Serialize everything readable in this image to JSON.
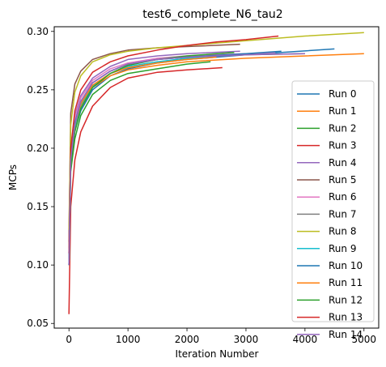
{
  "chart_data": {
    "type": "line",
    "title": "test6_complete_N6_tau2",
    "xlabel": "Iteration Number",
    "ylabel": "MCPs",
    "xlim": [
      -250,
      5250
    ],
    "ylim": [
      0.046,
      0.304
    ],
    "xticks": [
      0,
      1000,
      2000,
      3000,
      4000,
      5000
    ],
    "yticks": [
      0.05,
      0.1,
      0.15,
      0.2,
      0.25,
      0.3
    ],
    "xtick_labels": [
      "0",
      "1000",
      "2000",
      "3000",
      "4000",
      "5000"
    ],
    "ytick_labels": [
      "0.05",
      "0.10",
      "0.15",
      "0.20",
      "0.25",
      "0.30"
    ],
    "grid": false,
    "legend_position": "right",
    "series": [
      {
        "name": "Run 0",
        "color": "#1f77b4",
        "x": [
          0,
          30,
          100,
          200,
          400,
          700,
          1000,
          1500,
          2000,
          3000,
          4500
        ],
        "y": [
          0.12,
          0.19,
          0.215,
          0.232,
          0.25,
          0.262,
          0.268,
          0.273,
          0.276,
          0.28,
          0.285
        ]
      },
      {
        "name": "Run 1",
        "color": "#ff7f0e",
        "x": [
          0,
          30,
          100,
          200,
          400,
          700,
          1000,
          1500,
          2000,
          3000,
          5000
        ],
        "y": [
          0.115,
          0.185,
          0.218,
          0.236,
          0.252,
          0.262,
          0.267,
          0.271,
          0.274,
          0.277,
          0.281
        ]
      },
      {
        "name": "Run 2",
        "color": "#2ca02c",
        "x": [
          0,
          30,
          100,
          200,
          400,
          700,
          1000,
          1500,
          2000,
          2400
        ],
        "y": [
          0.1,
          0.18,
          0.208,
          0.228,
          0.246,
          0.258,
          0.264,
          0.268,
          0.272,
          0.274
        ]
      },
      {
        "name": "Run 3",
        "color": "#d62728",
        "x": [
          0,
          30,
          100,
          200,
          400,
          700,
          1000,
          1500,
          2000,
          2600
        ],
        "y": [
          0.058,
          0.15,
          0.19,
          0.214,
          0.236,
          0.252,
          0.26,
          0.265,
          0.267,
          0.269
        ]
      },
      {
        "name": "Run 4",
        "color": "#9467bd",
        "x": [
          0,
          30,
          100,
          200,
          400,
          700,
          1000,
          1500,
          2000,
          2900
        ],
        "y": [
          0.1,
          0.2,
          0.228,
          0.245,
          0.26,
          0.27,
          0.276,
          0.279,
          0.281,
          0.283
        ]
      },
      {
        "name": "Run 5",
        "color": "#8c564b",
        "x": [
          0,
          30,
          100,
          200,
          400,
          700,
          1000,
          1500,
          2000,
          2900
        ],
        "y": [
          0.12,
          0.23,
          0.255,
          0.266,
          0.276,
          0.281,
          0.284,
          0.286,
          0.287,
          0.289
        ]
      },
      {
        "name": "Run 6",
        "color": "#e377c2",
        "x": [
          0,
          30,
          100,
          200,
          400,
          700,
          1000,
          1500,
          2000,
          3000,
          3500
        ],
        "y": [
          0.11,
          0.2,
          0.226,
          0.243,
          0.258,
          0.268,
          0.273,
          0.277,
          0.279,
          0.281,
          0.282
        ]
      },
      {
        "name": "Run 7",
        "color": "#7f7f7f",
        "x": [
          0,
          30,
          100,
          200,
          400,
          700,
          1000,
          1500,
          2000,
          3000,
          4000
        ],
        "y": [
          0.1,
          0.19,
          0.22,
          0.24,
          0.256,
          0.266,
          0.272,
          0.276,
          0.278,
          0.28,
          0.281
        ]
      },
      {
        "name": "Run 8",
        "color": "#bcbd22",
        "x": [
          0,
          30,
          100,
          200,
          400,
          700,
          1000,
          1500,
          2000,
          3000,
          4000,
          5000
        ],
        "y": [
          0.13,
          0.22,
          0.248,
          0.262,
          0.274,
          0.28,
          0.283,
          0.286,
          0.288,
          0.292,
          0.296,
          0.299
        ]
      },
      {
        "name": "Run 9",
        "color": "#17becf",
        "x": [
          0,
          30,
          100,
          200,
          400,
          700,
          1000,
          1500,
          2000,
          2500
        ],
        "y": [
          0.1,
          0.19,
          0.218,
          0.237,
          0.253,
          0.264,
          0.27,
          0.274,
          0.277,
          0.279
        ]
      },
      {
        "name": "Run 10",
        "color": "#1f77b4",
        "x": [
          0,
          30,
          100,
          200,
          400,
          700,
          1000,
          1500,
          2000,
          3000,
          3600
        ],
        "y": [
          0.11,
          0.195,
          0.222,
          0.24,
          0.256,
          0.266,
          0.272,
          0.276,
          0.278,
          0.281,
          0.283
        ]
      },
      {
        "name": "Run 11",
        "color": "#ff7f0e",
        "x": [
          0,
          30,
          100,
          200,
          400,
          700,
          1000,
          1500,
          2000,
          2500
        ],
        "y": [
          0.11,
          0.19,
          0.22,
          0.238,
          0.254,
          0.264,
          0.269,
          0.273,
          0.276,
          0.278
        ]
      },
      {
        "name": "Run 12",
        "color": "#2ca02c",
        "x": [
          0,
          30,
          100,
          200,
          400,
          700,
          1000,
          1500,
          2000,
          2800
        ],
        "y": [
          0.1,
          0.185,
          0.214,
          0.234,
          0.252,
          0.264,
          0.271,
          0.276,
          0.279,
          0.282
        ]
      },
      {
        "name": "Run 13",
        "color": "#d62728",
        "x": [
          0,
          30,
          100,
          200,
          400,
          700,
          1000,
          1500,
          2000,
          2500,
          3000,
          3550
        ],
        "y": [
          0.11,
          0.2,
          0.232,
          0.25,
          0.265,
          0.274,
          0.279,
          0.284,
          0.288,
          0.291,
          0.293,
          0.296
        ]
      },
      {
        "name": "Run 14",
        "color": "#9467bd",
        "x": [
          0,
          30,
          100,
          200,
          400,
          700,
          1000,
          1500,
          2000,
          3000,
          4000
        ],
        "y": [
          0.1,
          0.19,
          0.22,
          0.24,
          0.256,
          0.266,
          0.272,
          0.276,
          0.278,
          0.28,
          0.281
        ]
      }
    ]
  }
}
